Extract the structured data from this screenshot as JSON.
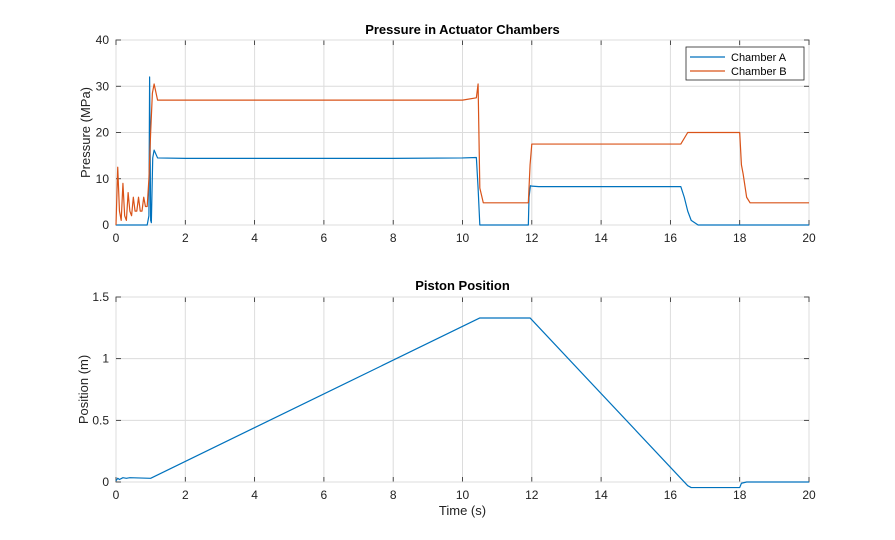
{
  "chart_data": [
    {
      "type": "line",
      "title": "Pressure in Actuator Chambers",
      "xlabel": "",
      "ylabel": "Pressure (MPa)",
      "xlim": [
        0,
        20
      ],
      "ylim": [
        0,
        40
      ],
      "xticks": [
        0,
        2,
        4,
        6,
        8,
        10,
        12,
        14,
        16,
        18,
        20
      ],
      "yticks": [
        0,
        10,
        20,
        30,
        40
      ],
      "grid": true,
      "legend": "top-right",
      "series": [
        {
          "name": "Chamber A",
          "color": "#0072BD",
          "x": [
            0,
            0.9,
            0.95,
            0.97,
            1.0,
            1.02,
            1.06,
            1.1,
            1.2,
            2,
            4,
            6,
            8,
            10,
            10.4,
            10.45,
            10.5,
            11.9,
            11.92,
            11.96,
            12.0,
            12.2,
            14,
            16.3,
            16.4,
            16.5,
            16.6,
            16.8,
            18,
            20
          ],
          "values": [
            0,
            0,
            2,
            32,
            1,
            0.5,
            14.5,
            16.2,
            14.5,
            14.4,
            14.4,
            14.4,
            14.4,
            14.5,
            14.6,
            8,
            0,
            0,
            6,
            8.5,
            8.4,
            8.3,
            8.3,
            8.3,
            6,
            3,
            1,
            0,
            0,
            0
          ]
        },
        {
          "name": "Chamber B",
          "color": "#D95319",
          "x": [
            0,
            0.05,
            0.1,
            0.15,
            0.2,
            0.25,
            0.3,
            0.35,
            0.4,
            0.45,
            0.5,
            0.55,
            0.6,
            0.65,
            0.7,
            0.75,
            0.8,
            0.85,
            0.9,
            0.95,
            1.0,
            1.05,
            1.1,
            1.2,
            2,
            4,
            6,
            8,
            10,
            10.4,
            10.45,
            10.5,
            10.6,
            11.9,
            11.95,
            12.0,
            12.2,
            14,
            16.3,
            16.5,
            17,
            18,
            18.05,
            18.1,
            18.2,
            18.3,
            20
          ],
          "values": [
            0,
            12.5,
            3,
            1,
            9,
            2,
            1,
            7,
            3,
            2,
            6,
            3,
            3,
            6,
            3,
            3,
            6,
            4,
            4,
            10,
            20,
            28.5,
            30.5,
            27,
            27,
            27,
            27,
            27,
            27,
            27.5,
            30.5,
            8,
            4.8,
            4.8,
            13,
            17.5,
            17.5,
            17.5,
            17.5,
            20,
            20,
            20,
            13,
            11,
            6,
            4.8,
            4.8
          ]
        }
      ]
    },
    {
      "type": "line",
      "title": "Piston Position",
      "xlabel": "Time (s)",
      "ylabel": "Position (m)",
      "xlim": [
        0,
        20
      ],
      "ylim": [
        0,
        1.5
      ],
      "xticks": [
        0,
        2,
        4,
        6,
        8,
        10,
        12,
        14,
        16,
        18,
        20
      ],
      "yticks": [
        0,
        0.5,
        1,
        1.5
      ],
      "grid": true,
      "series": [
        {
          "color": "#0072BD",
          "x": [
            0,
            0.05,
            0.1,
            0.2,
            0.3,
            0.4,
            1.0,
            10.5,
            11.95,
            16.5,
            16.6,
            18.0,
            18.05,
            18.2,
            20
          ],
          "values": [
            0.01,
            0.03,
            0.02,
            0.035,
            0.03,
            0.035,
            0.03,
            1.33,
            1.33,
            -0.03,
            -0.045,
            -0.045,
            -0.01,
            0.0,
            0.0
          ]
        }
      ]
    }
  ]
}
